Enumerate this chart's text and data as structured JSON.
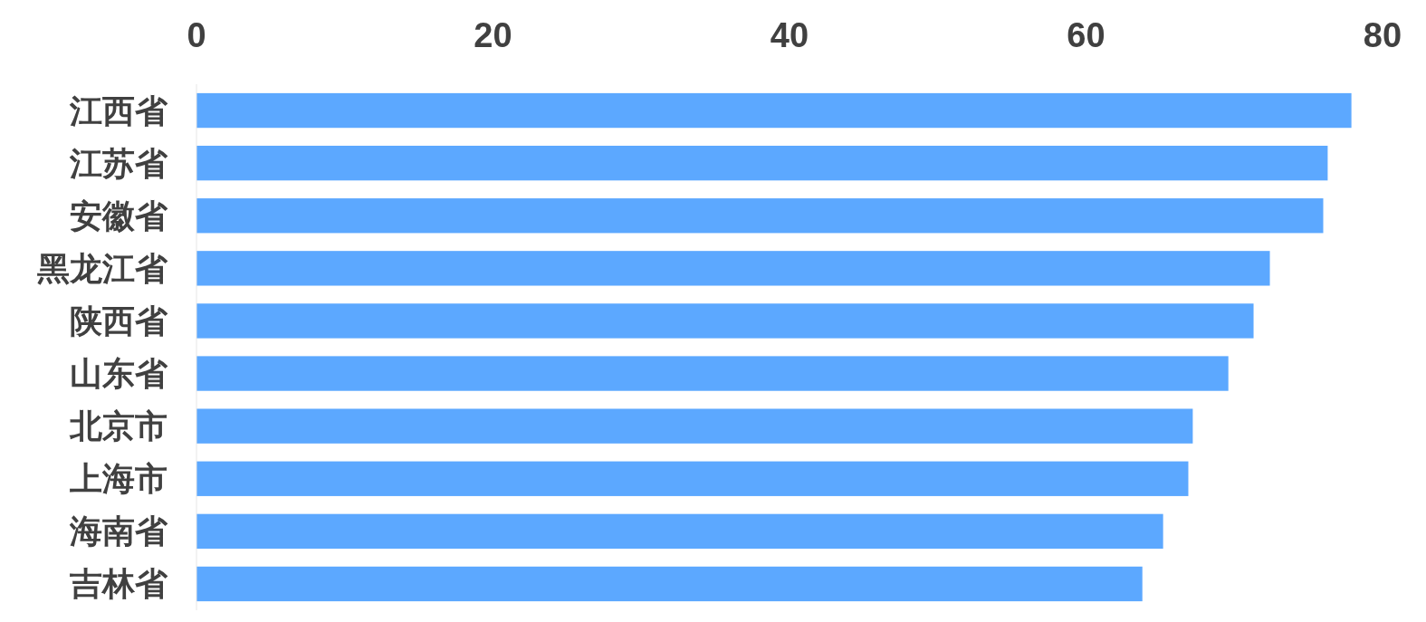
{
  "chart_data": {
    "type": "bar",
    "orientation": "horizontal",
    "categories": [
      "江西省",
      "江苏省",
      "安徽省",
      "黑龙江省",
      "陕西省",
      "山东省",
      "北京市",
      "上海市",
      "海南省",
      "吉林省"
    ],
    "values": [
      77.9,
      76.3,
      76.0,
      72.4,
      71.3,
      69.6,
      67.2,
      66.9,
      65.2,
      63.8
    ],
    "color": "#5ca8ff",
    "xlim": [
      0,
      80
    ],
    "xticks": [
      0,
      20,
      40,
      60,
      80
    ]
  }
}
